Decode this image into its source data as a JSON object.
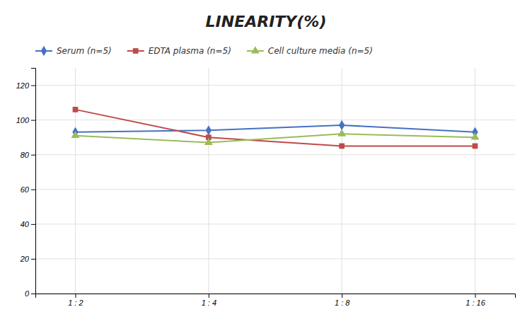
{
  "chart_data": {
    "type": "line",
    "title": "LINEARITY(%)",
    "categories": [
      "1 : 2",
      "1 : 4",
      "1 : 8",
      "1 : 16"
    ],
    "series": [
      {
        "name": "Serum (n=5)",
        "color": "#4472C4",
        "marker": "diamond",
        "values": [
          93,
          94,
          97,
          93
        ]
      },
      {
        "name": "EDTA plasma (n=5)",
        "color": "#BE4B48",
        "marker": "square",
        "values": [
          106,
          90,
          85,
          85
        ]
      },
      {
        "name": "Cell culture media (n=5)",
        "color": "#9BBB59",
        "marker": "triangle",
        "values": [
          91,
          87,
          92,
          90
        ]
      }
    ],
    "ylim": [
      0,
      130
    ],
    "yticks": [
      0,
      20,
      40,
      60,
      80,
      100,
      120
    ],
    "grid": true,
    "legend": "top"
  }
}
